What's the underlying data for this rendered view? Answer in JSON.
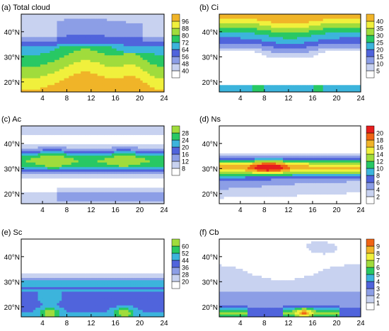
{
  "chart_data": [
    {
      "type": "heatmap",
      "title": "(a) Total cloud",
      "x_ticks": [
        "4",
        "8",
        "12",
        "16",
        "20",
        "24"
      ],
      "y_ticks": [
        "20°N",
        "30°N",
        "40°N"
      ],
      "colorbar_levels": [
        "40",
        "48",
        "56",
        "64",
        "72",
        "80",
        "88",
        "96"
      ],
      "colors": [
        "#ffffff",
        "#c8d2f0",
        "#8c9ee6",
        "#5064dc",
        "#3cb4dc",
        "#28c864",
        "#a0dc3c",
        "#f0f03c",
        "#f0b428",
        "#f06414",
        "#e61e1e"
      ]
    },
    {
      "type": "heatmap",
      "title": "(b) Ci",
      "x_ticks": [
        "4",
        "8",
        "12",
        "16",
        "20",
        "24"
      ],
      "y_ticks": [
        "20°N",
        "30°N",
        "40°N"
      ],
      "colorbar_levels": [
        "5",
        "10",
        "15",
        "20",
        "25",
        "30",
        "35",
        "40"
      ],
      "colors": [
        "#ffffff",
        "#c8d2f0",
        "#8c9ee6",
        "#5064dc",
        "#3cb4dc",
        "#28c864",
        "#a0dc3c",
        "#f0f03c",
        "#f0b428",
        "#f06414",
        "#e61e1e"
      ]
    },
    {
      "type": "heatmap",
      "title": "(c) Ac",
      "x_ticks": [
        "4",
        "8",
        "12",
        "16",
        "20",
        "24"
      ],
      "y_ticks": [
        "20°N",
        "30°N",
        "40°N"
      ],
      "colorbar_levels": [
        "8",
        "12",
        "16",
        "20",
        "24",
        "28"
      ],
      "colors": [
        "#ffffff",
        "#c8d2f0",
        "#8c9ee6",
        "#5064dc",
        "#3cb4dc",
        "#28c864",
        "#a0dc3c",
        "#f0f03c",
        "#f0b428",
        "#f06414",
        "#e61e1e"
      ]
    },
    {
      "type": "heatmap",
      "title": "(d) Ns",
      "x_ticks": [
        "4",
        "8",
        "12",
        "16",
        "20",
        "24"
      ],
      "y_ticks": [
        "20°N",
        "30°N",
        "40°N"
      ],
      "colorbar_levels": [
        "2",
        "4",
        "6",
        "8",
        "10",
        "12",
        "14",
        "16",
        "18",
        "20"
      ],
      "colors": [
        "#ffffff",
        "#c8d2f0",
        "#8c9ee6",
        "#5064dc",
        "#3cb4dc",
        "#28c864",
        "#a0dc3c",
        "#f0f03c",
        "#f0b428",
        "#f06414",
        "#e61e1e"
      ]
    },
    {
      "type": "heatmap",
      "title": "(e) Sc",
      "x_ticks": [
        "4",
        "8",
        "12",
        "16",
        "20",
        "24"
      ],
      "y_ticks": [
        "20°N",
        "30°N",
        "40°N"
      ],
      "colorbar_levels": [
        "20",
        "28",
        "36",
        "44",
        "52",
        "60"
      ],
      "colors": [
        "#ffffff",
        "#c8d2f0",
        "#8c9ee6",
        "#5064dc",
        "#3cb4dc",
        "#28c864",
        "#a0dc3c",
        "#f0f03c",
        "#f0b428",
        "#f06414",
        "#e61e1e"
      ]
    },
    {
      "type": "heatmap",
      "title": "(f) Cb",
      "x_ticks": [
        "4",
        "8",
        "12",
        "16",
        "20",
        "24"
      ],
      "y_ticks": [
        "20°N",
        "30°N",
        "40°N"
      ],
      "colorbar_levels": [
        "1",
        "2",
        "3",
        "4",
        "5",
        "6",
        "7",
        "8",
        "9"
      ],
      "colors": [
        "#ffffff",
        "#c8d2f0",
        "#8c9ee6",
        "#5064dc",
        "#3cb4dc",
        "#28c864",
        "#a0dc3c",
        "#f0f03c",
        "#f0b428",
        "#f06414",
        "#e61e1e"
      ]
    }
  ]
}
